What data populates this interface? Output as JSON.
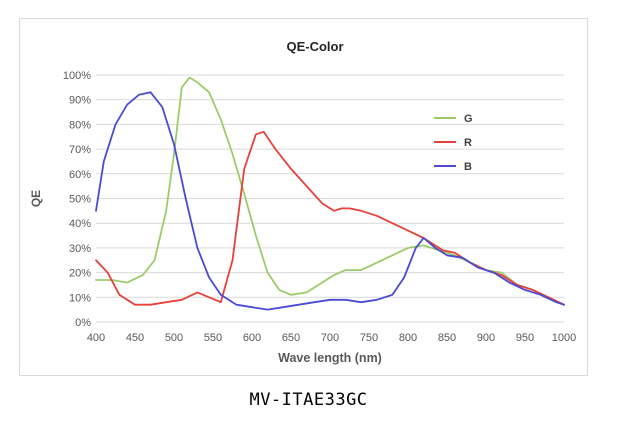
{
  "caption": "MV-ITAE33GC",
  "chart_data": {
    "type": "line",
    "title": "QE-Color",
    "xlabel": "Wave length (nm)",
    "ylabel": "QE",
    "xlim": [
      400,
      1000
    ],
    "ylim": [
      0,
      100
    ],
    "x_ticks": [
      400,
      450,
      500,
      550,
      600,
      650,
      700,
      750,
      800,
      850,
      900,
      950,
      1000
    ],
    "y_ticks": [
      0,
      10,
      20,
      30,
      40,
      50,
      60,
      70,
      80,
      90,
      100
    ],
    "y_tick_format": "percent",
    "grid": "horizontal",
    "legend": "right",
    "series": [
      {
        "name": "G",
        "color": "#9acd6a",
        "points": [
          [
            400,
            17
          ],
          [
            420,
            17
          ],
          [
            440,
            16
          ],
          [
            460,
            19
          ],
          [
            475,
            25
          ],
          [
            490,
            45
          ],
          [
            500,
            68
          ],
          [
            510,
            95
          ],
          [
            520,
            99
          ],
          [
            530,
            97
          ],
          [
            545,
            93
          ],
          [
            560,
            82
          ],
          [
            575,
            68
          ],
          [
            590,
            52
          ],
          [
            605,
            35
          ],
          [
            620,
            20
          ],
          [
            635,
            13
          ],
          [
            650,
            11
          ],
          [
            670,
            12
          ],
          [
            690,
            16
          ],
          [
            705,
            19
          ],
          [
            720,
            21
          ],
          [
            740,
            21
          ],
          [
            760,
            24
          ],
          [
            780,
            27
          ],
          [
            800,
            30
          ],
          [
            820,
            31
          ],
          [
            840,
            29
          ],
          [
            860,
            27
          ],
          [
            880,
            24
          ],
          [
            900,
            21
          ],
          [
            920,
            20
          ],
          [
            940,
            15
          ],
          [
            960,
            13
          ],
          [
            980,
            10
          ],
          [
            1000,
            7
          ]
        ]
      },
      {
        "name": "R",
        "color": "#e8403a",
        "points": [
          [
            400,
            25
          ],
          [
            415,
            20
          ],
          [
            430,
            11
          ],
          [
            450,
            7
          ],
          [
            470,
            7
          ],
          [
            490,
            8
          ],
          [
            510,
            9
          ],
          [
            530,
            12
          ],
          [
            545,
            10
          ],
          [
            560,
            8
          ],
          [
            575,
            25
          ],
          [
            590,
            62
          ],
          [
            605,
            76
          ],
          [
            615,
            77
          ],
          [
            630,
            70
          ],
          [
            650,
            62
          ],
          [
            670,
            55
          ],
          [
            690,
            48
          ],
          [
            705,
            45
          ],
          [
            715,
            46
          ],
          [
            725,
            46
          ],
          [
            740,
            45
          ],
          [
            760,
            43
          ],
          [
            780,
            40
          ],
          [
            800,
            37
          ],
          [
            820,
            34
          ],
          [
            830,
            32
          ],
          [
            845,
            29
          ],
          [
            860,
            28
          ],
          [
            880,
            24
          ],
          [
            900,
            21
          ],
          [
            920,
            19
          ],
          [
            940,
            15
          ],
          [
            960,
            13
          ],
          [
            980,
            10
          ],
          [
            1000,
            7
          ]
        ]
      },
      {
        "name": "B",
        "color": "#4a4ad6",
        "points": [
          [
            400,
            45
          ],
          [
            410,
            65
          ],
          [
            425,
            80
          ],
          [
            440,
            88
          ],
          [
            455,
            92
          ],
          [
            470,
            93
          ],
          [
            485,
            87
          ],
          [
            500,
            72
          ],
          [
            515,
            50
          ],
          [
            530,
            30
          ],
          [
            545,
            18
          ],
          [
            560,
            11
          ],
          [
            580,
            7
          ],
          [
            600,
            6
          ],
          [
            620,
            5
          ],
          [
            640,
            6
          ],
          [
            660,
            7
          ],
          [
            680,
            8
          ],
          [
            700,
            9
          ],
          [
            720,
            9
          ],
          [
            740,
            8
          ],
          [
            760,
            9
          ],
          [
            780,
            11
          ],
          [
            795,
            18
          ],
          [
            810,
            30
          ],
          [
            820,
            34
          ],
          [
            835,
            30
          ],
          [
            850,
            27
          ],
          [
            870,
            26
          ],
          [
            890,
            22
          ],
          [
            910,
            20
          ],
          [
            930,
            16
          ],
          [
            950,
            13
          ],
          [
            970,
            11
          ],
          [
            990,
            8
          ],
          [
            1000,
            7
          ]
        ]
      }
    ]
  }
}
